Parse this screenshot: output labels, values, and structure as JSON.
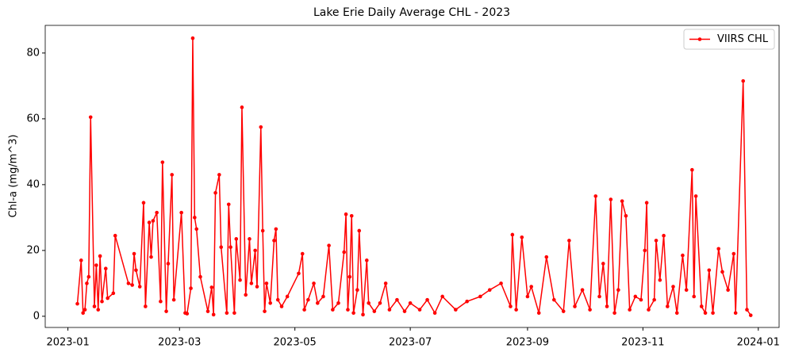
{
  "chart_data": {
    "type": "line",
    "title": "Lake Erie Daily Average CHL - 2023",
    "y_label": "Chl-a (mg/m^3)",
    "x": [
      "2023-01-06",
      "2023-01-08",
      "2023-01-09",
      "2023-01-10",
      "2023-01-11",
      "2023-01-12",
      "2023-01-13",
      "2023-01-15",
      "2023-01-16",
      "2023-01-17",
      "2023-01-18",
      "2023-01-19",
      "2023-01-21",
      "2023-01-22",
      "2023-01-25",
      "2023-01-26",
      "2023-02-02",
      "2023-02-04",
      "2023-02-05",
      "2023-02-06",
      "2023-02-08",
      "2023-02-10",
      "2023-02-11",
      "2023-02-13",
      "2023-02-14",
      "2023-02-15",
      "2023-02-17",
      "2023-02-19",
      "2023-02-20",
      "2023-02-22",
      "2023-02-23",
      "2023-02-25",
      "2023-02-26",
      "2023-03-02",
      "2023-03-04",
      "2023-03-05",
      "2023-03-07",
      "2023-03-08",
      "2023-03-09",
      "2023-03-10",
      "2023-03-12",
      "2023-03-16",
      "2023-03-18",
      "2023-03-19",
      "2023-03-20",
      "2023-03-22",
      "2023-03-23",
      "2023-03-26",
      "2023-03-27",
      "2023-03-28",
      "2023-03-30",
      "2023-03-31",
      "2023-04-02",
      "2023-04-03",
      "2023-04-05",
      "2023-04-07",
      "2023-04-08",
      "2023-04-10",
      "2023-04-11",
      "2023-04-13",
      "2023-04-14",
      "2023-04-15",
      "2023-04-16",
      "2023-04-18",
      "2023-04-20",
      "2023-04-21",
      "2023-04-22",
      "2023-04-24",
      "2023-04-27",
      "2023-05-03",
      "2023-05-05",
      "2023-05-06",
      "2023-05-08",
      "2023-05-11",
      "2023-05-13",
      "2023-05-16",
      "2023-05-19",
      "2023-05-21",
      "2023-05-24",
      "2023-05-27",
      "2023-05-28",
      "2023-05-29",
      "2023-05-30",
      "2023-05-31",
      "2023-06-01",
      "2023-06-03",
      "2023-06-04",
      "2023-06-06",
      "2023-06-08",
      "2023-06-09",
      "2023-06-12",
      "2023-06-15",
      "2023-06-18",
      "2023-06-20",
      "2023-06-24",
      "2023-06-28",
      "2023-07-01",
      "2023-07-06",
      "2023-07-10",
      "2023-07-14",
      "2023-07-18",
      "2023-07-25",
      "2023-07-31",
      "2023-08-07",
      "2023-08-12",
      "2023-08-18",
      "2023-08-23",
      "2023-08-24",
      "2023-08-26",
      "2023-08-29",
      "2023-09-01",
      "2023-09-03",
      "2023-09-07",
      "2023-09-11",
      "2023-09-15",
      "2023-09-20",
      "2023-09-23",
      "2023-09-26",
      "2023-09-30",
      "2023-10-04",
      "2023-10-07",
      "2023-10-09",
      "2023-10-11",
      "2023-10-13",
      "2023-10-15",
      "2023-10-17",
      "2023-10-19",
      "2023-10-21",
      "2023-10-23",
      "2023-10-25",
      "2023-10-28",
      "2023-10-31",
      "2023-11-02",
      "2023-11-03",
      "2023-11-04",
      "2023-11-07",
      "2023-11-08",
      "2023-11-10",
      "2023-11-12",
      "2023-11-14",
      "2023-11-17",
      "2023-11-19",
      "2023-11-22",
      "2023-11-24",
      "2023-11-27",
      "2023-11-28",
      "2023-11-29",
      "2023-12-02",
      "2023-12-04",
      "2023-12-06",
      "2023-12-08",
      "2023-12-11",
      "2023-12-13",
      "2023-12-16",
      "2023-12-19",
      "2023-12-20",
      "2023-12-24",
      "2023-12-26",
      "2023-12-28"
    ],
    "series": [
      {
        "name": "VIIRS CHL",
        "color": "#ff0000",
        "values": [
          3.8,
          17,
          1,
          2,
          10,
          12,
          60.5,
          3,
          15.5,
          2,
          18.3,
          4.5,
          14.5,
          5.5,
          7,
          24.5,
          10,
          9.5,
          19,
          14,
          9,
          34.5,
          3,
          28.5,
          18,
          29,
          31.5,
          4.5,
          46.8,
          1.5,
          16,
          43,
          5,
          31.5,
          1,
          0.8,
          8.5,
          84.5,
          30,
          26.5,
          12,
          1.5,
          8.8,
          0.5,
          37.5,
          43,
          21,
          1,
          34,
          21,
          1,
          23.5,
          11,
          63.5,
          6.5,
          23.5,
          10,
          20,
          9,
          57.5,
          26,
          1.5,
          10,
          4,
          23,
          26.5,
          5,
          3,
          6,
          13,
          19,
          2,
          5,
          10,
          4,
          6,
          21.5,
          2,
          4,
          19.5,
          31,
          2,
          12,
          30.5,
          1,
          8,
          26,
          0.5,
          17,
          4,
          1.5,
          4,
          10,
          2,
          5,
          1.5,
          4,
          2,
          5,
          1,
          6,
          2,
          4.5,
          6,
          8,
          10,
          3,
          24.8,
          2,
          24,
          6,
          9,
          1,
          18,
          5,
          1.5,
          23,
          3,
          8,
          2,
          36.5,
          6,
          16,
          3,
          35.5,
          1,
          8,
          35,
          30.5,
          2,
          6,
          5,
          20,
          34.5,
          2,
          5,
          23,
          11,
          24.5,
          3,
          9,
          1,
          18.5,
          8,
          44.5,
          6,
          36.5,
          3,
          1,
          14,
          1,
          20.5,
          13.5,
          8,
          19,
          1,
          71.5,
          2,
          0.3
        ]
      }
    ],
    "xlim": [
      "2022-12-20",
      "2024-01-12"
    ],
    "xticks": [
      "2023-01",
      "2023-03",
      "2023-05",
      "2023-07",
      "2023-09",
      "2023-11",
      "2024-01"
    ],
    "ylim": [
      -3.4,
      88.4
    ],
    "yticks": [
      0,
      20,
      40,
      60,
      80
    ],
    "grid": false,
    "legend": "upper right"
  }
}
